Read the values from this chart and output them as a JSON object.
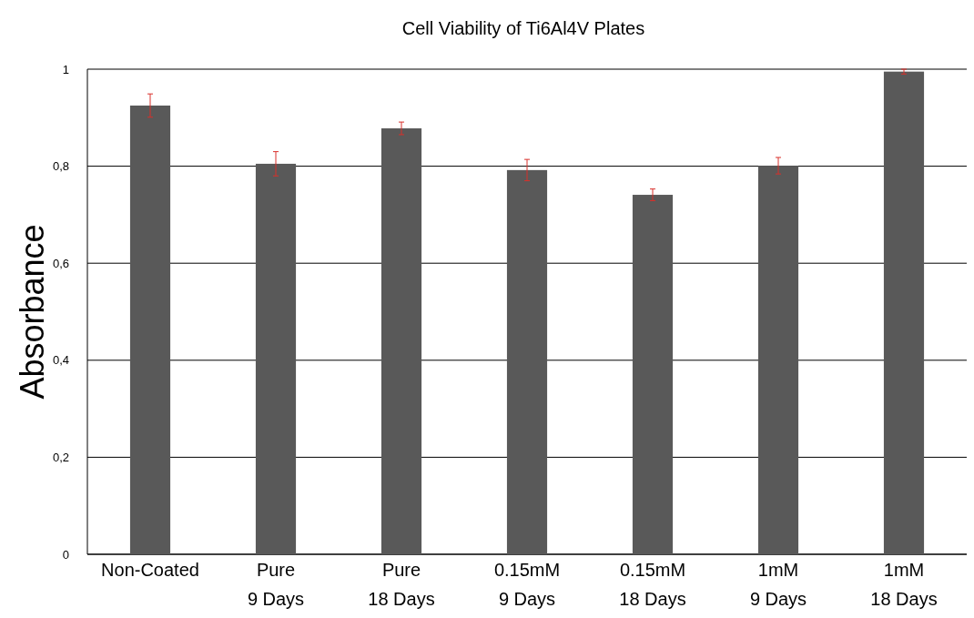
{
  "chart_data": {
    "type": "bar",
    "title": "Cell Viability of Ti6Al4V Plates",
    "ylabel": "Absorbance",
    "categories": [
      "Non-Coated",
      "Pure\n9 Days",
      "Pure\n18 Days",
      "0.15mM\n9 Days",
      "0.15mM\n18 Days",
      "1mM\n9 Days",
      "1mM\n18 Days"
    ],
    "values": [
      0.925,
      0.805,
      0.878,
      0.792,
      0.741,
      0.801,
      0.995
    ],
    "errors": [
      0.024,
      0.025,
      0.013,
      0.022,
      0.012,
      0.017,
      0.005
    ],
    "color": "#595959",
    "ylim": [
      0,
      1
    ],
    "yticks": [
      0,
      {
        "value": 0.2,
        "label": "0,2"
      },
      {
        "value": 0.4,
        "label": "0,4"
      },
      {
        "value": 0.6,
        "label": "0,6"
      },
      {
        "value": 0.8,
        "label": "0,8"
      },
      1
    ],
    "grid": "y"
  }
}
